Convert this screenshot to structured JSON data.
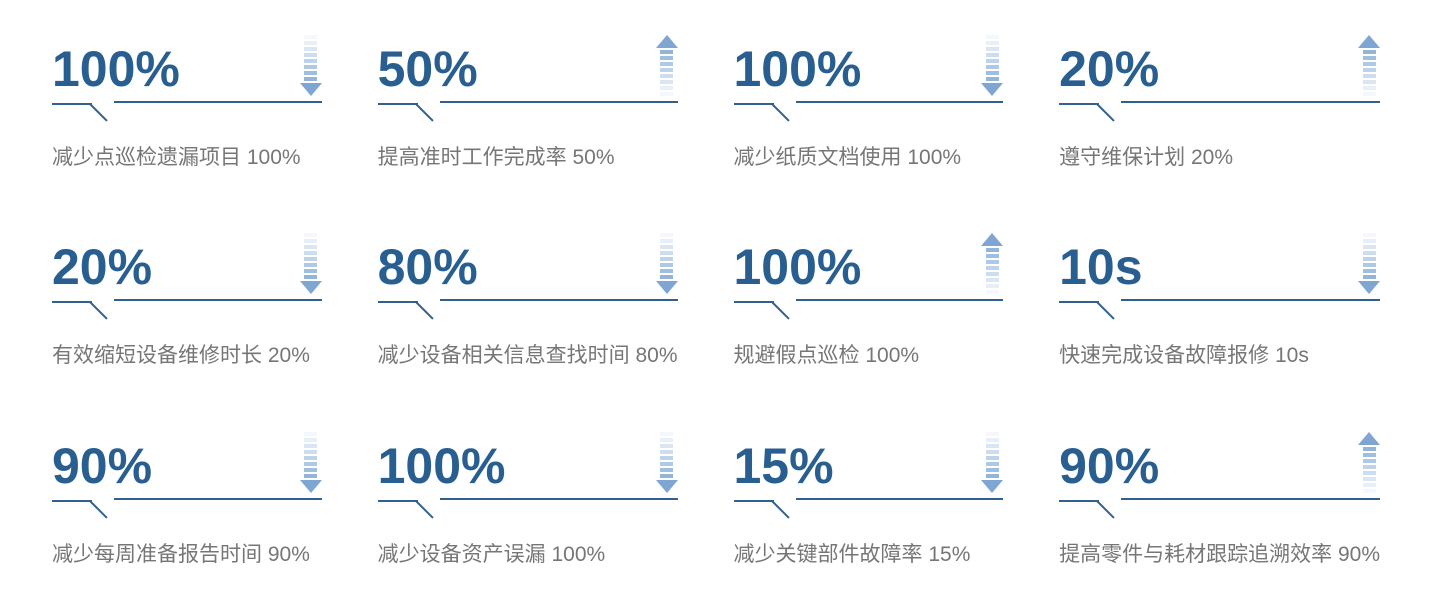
{
  "page": {
    "background": "#ffffff"
  },
  "colors": {
    "value_text": "#295e91",
    "underline": "#33618f",
    "label_text": "#767676",
    "arrow_solid": "#7fa5d2",
    "arrow_bars_light_to_dark": [
      "#f4f8fc",
      "#e8eff8",
      "#dae6f3",
      "#ccddef",
      "#bdd3ea",
      "#aec9e5",
      "#9fbfe0",
      "#92b6da"
    ]
  },
  "cards": [
    {
      "value": "100%",
      "trend": "down",
      "icon": "arrow-down-icon",
      "label": "减少点巡检遗漏项目 100%"
    },
    {
      "value": "50%",
      "trend": "up",
      "icon": "arrow-up-icon",
      "label": "提高准时工作完成率 50%"
    },
    {
      "value": "100%",
      "trend": "down",
      "icon": "arrow-down-icon",
      "label": "减少纸质文档使用 100%"
    },
    {
      "value": "20%",
      "trend": "up",
      "icon": "arrow-up-icon",
      "label": "遵守维保计划 20%"
    },
    {
      "value": "20%",
      "trend": "down",
      "icon": "arrow-down-icon",
      "label": "有效缩短设备维修时长 20%"
    },
    {
      "value": "80%",
      "trend": "down",
      "icon": "arrow-down-icon",
      "label": "减少设备相关信息查找时间 80%"
    },
    {
      "value": "100%",
      "trend": "up",
      "icon": "arrow-up-icon",
      "label": "规避假点巡检 100%"
    },
    {
      "value": "10s",
      "trend": "down",
      "icon": "arrow-down-icon",
      "label": "快速完成设备故障报修 10s"
    },
    {
      "value": "90%",
      "trend": "down",
      "icon": "arrow-down-icon",
      "label": "减少每周准备报告时间 90%"
    },
    {
      "value": "100%",
      "trend": "down",
      "icon": "arrow-down-icon",
      "label": "减少设备资产误漏 100%"
    },
    {
      "value": "15%",
      "trend": "down",
      "icon": "arrow-down-icon",
      "label": "减少关键部件故障率 15%"
    },
    {
      "value": "90%",
      "trend": "up",
      "icon": "arrow-up-icon",
      "label": "提高零件与耗材跟踪追溯效率 90%"
    }
  ]
}
